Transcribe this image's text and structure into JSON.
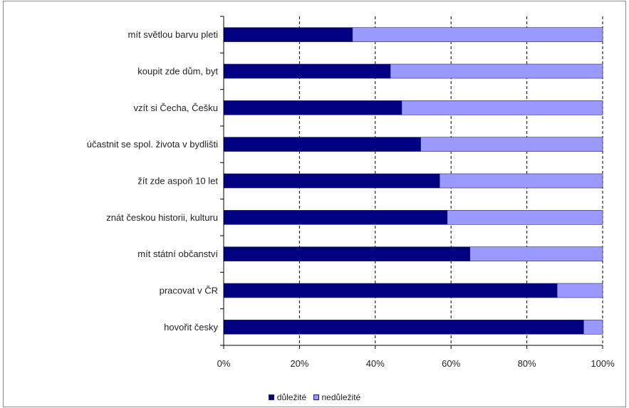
{
  "chart_data": {
    "type": "bar",
    "orientation": "horizontal",
    "stacked": "percent",
    "categories": [
      "mít světlou barvu pleti",
      "koupit zde dům, byt",
      "vzít si Čecha, Češku",
      "účastnit se spol. života v bydlišti",
      "žít zde aspoň 10 let",
      "znát českou historii, kulturu",
      "mít státní občanství",
      "pracovat v ČR",
      "hovořit česky"
    ],
    "series": [
      {
        "name": "důležité",
        "color": "#000080",
        "values": [
          34,
          44,
          47,
          52,
          57,
          59,
          65,
          88,
          95
        ]
      },
      {
        "name": "nedůležité",
        "color": "#9999ff",
        "values": [
          66,
          56,
          53,
          48,
          43,
          41,
          35,
          12,
          5
        ]
      }
    ],
    "xlim": [
      0,
      100
    ],
    "ticks": [
      "0%",
      "20%",
      "40%",
      "60%",
      "80%",
      "100%"
    ],
    "tick_values": [
      0,
      20,
      40,
      60,
      80,
      100
    ],
    "grid": "vertical dashed",
    "legend": "bottom"
  }
}
